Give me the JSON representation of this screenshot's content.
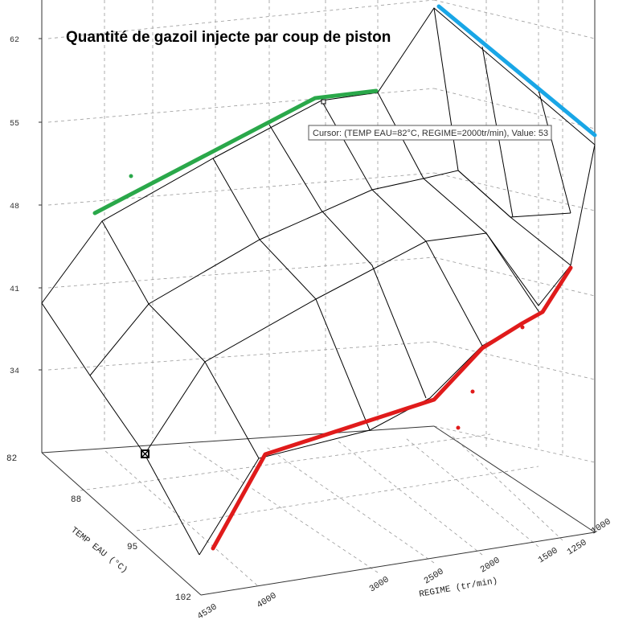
{
  "chart_data": {
    "type": "surface3d",
    "title": "Quantité de gazoil injecte par coup de piston",
    "xlabel": "REGIME (tr/min)",
    "ylabel": "TEMP EAU (°C)",
    "x_ticks": [
      "1000",
      "1250",
      "1500",
      "2000",
      "2500",
      "3000",
      "4000",
      "4530"
    ],
    "y_ticks": [
      "82",
      "88",
      "95",
      "102"
    ],
    "z_ticks": [
      "62",
      "55",
      "48",
      "41",
      "34"
    ],
    "z_range": [
      27,
      62
    ],
    "cursor_tooltip": "Cursor: (TEMP EAU=82°C, REGIME=2000tr/min), Value: 53",
    "colors": {
      "green_highlight": "#2aa84a",
      "blue_highlight": "#19a6e6",
      "red_highlight": "#e01b1b",
      "mesh": "#000000"
    }
  }
}
